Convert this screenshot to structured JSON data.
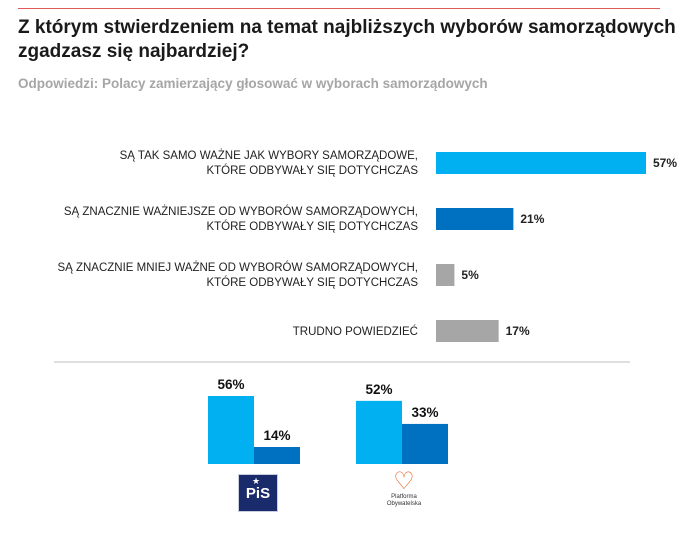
{
  "header": {
    "title": "Z którym stwierdzeniem na temat najbliższych wyborów samorządowych zgadzasz się najbardziej?",
    "subtitle": "Odpowiedzi: Polacy zamierzający głosować w wyborach samorządowych"
  },
  "colors": {
    "light_blue": "#00b0f0",
    "dark_blue": "#0070c0",
    "gray": "#a6a6a6",
    "accent_red": "#e05a5a"
  },
  "chart_data": [
    {
      "type": "bar",
      "orientation": "horizontal",
      "title": "",
      "categories": [
        [
          "SĄ TAK SAMO WAŻNE JAK WYBORY SAMORZĄDOWE,",
          "KTÓRE ODBYWAŁY SIĘ DOTYCHCZAS"
        ],
        [
          "SĄ ZNACZNIE WAŻNIEJSZE OD WYBORÓW SAMORZĄDOWYCH,",
          "KTÓRE ODBYWAŁY SIĘ DOTYCHCZAS"
        ],
        [
          "SĄ ZNACZNIE MNIEJ WAŻNE OD WYBORÓW SAMORZĄDOWYCH,",
          "KTÓRE ODBYWAŁY SIĘ DOTYCHCZAS"
        ],
        [
          "TRUDNO POWIEDZIEĆ"
        ]
      ],
      "values": [
        57,
        21,
        5,
        17
      ],
      "value_labels": [
        "57%",
        "21%",
        "5%",
        "17%"
      ],
      "bar_colors": [
        "#00b0f0",
        "#0070c0",
        "#a6a6a6",
        "#a6a6a6"
      ],
      "xlim": [
        0,
        57
      ]
    },
    {
      "type": "bar",
      "orientation": "vertical",
      "groups": [
        {
          "logo": "PiS",
          "logo_text": "PiS",
          "values": [
            56,
            14
          ],
          "labels": [
            "56%",
            "14%"
          ]
        },
        {
          "logo": "PO",
          "logo_text": [
            "Platforma",
            "Obywatelska"
          ],
          "values": [
            52,
            33
          ],
          "labels": [
            "52%",
            "33%"
          ]
        }
      ],
      "series_colors": [
        "#00b0f0",
        "#0070c0"
      ],
      "ylim": [
        0,
        56
      ]
    }
  ]
}
